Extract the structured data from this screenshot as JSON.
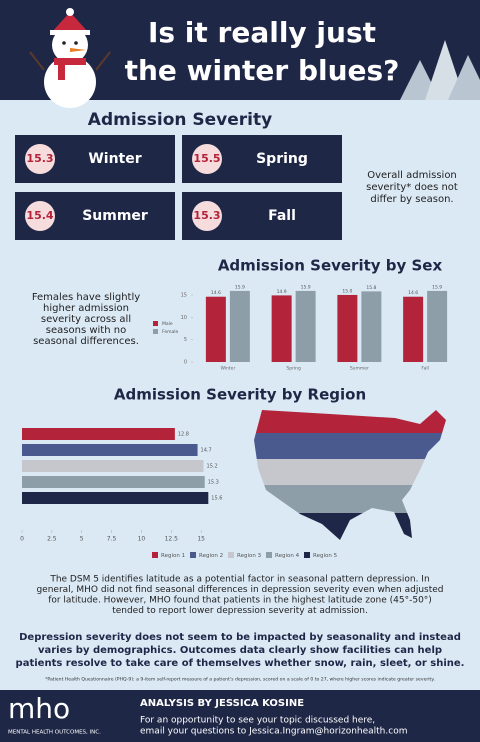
{
  "header": {
    "title_lines": [
      "Is it really just",
      "the winter blues?"
    ]
  },
  "severity": {
    "title": "Admission Severity",
    "cards": [
      {
        "value": "15.3",
        "label": "Winter"
      },
      {
        "value": "15.5",
        "label": "Spring"
      },
      {
        "value": "15.4",
        "label": "Summer"
      },
      {
        "value": "15.3",
        "label": "Fall"
      }
    ],
    "note_lines": [
      "Overall admission",
      "severity* does not",
      "differ by season."
    ]
  },
  "sex_note_lines": [
    "Females have slightly",
    "higher admission",
    "severity across all",
    "seasons with no",
    "seasonal differences."
  ],
  "chart_data": [
    {
      "type": "bar",
      "title": "Admission Severity by Sex",
      "categories": [
        "Winter",
        "Spring",
        "Summer",
        "Fall"
      ],
      "series": [
        {
          "name": "Male",
          "color": "#b3243b",
          "values": [
            14.6,
            14.9,
            15.0,
            14.6
          ],
          "value_labels": [
            "14.6",
            "14.9",
            "15.0",
            "14.6"
          ]
        },
        {
          "name": "Female",
          "color": "#8e9ea9",
          "values": [
            15.9,
            15.9,
            15.8,
            15.9
          ],
          "value_labels": [
            "15.9",
            "15.9",
            "15.8",
            "15.9"
          ]
        }
      ],
      "ylim": [
        0,
        17
      ],
      "yticks": [
        0,
        5,
        10,
        15
      ]
    },
    {
      "type": "hbar",
      "title": "Admission Severity by Region",
      "series": [
        {
          "name": "Region 1",
          "color": "#b3243b",
          "values": [
            12.8
          ]
        },
        {
          "name": "Region 2",
          "color": "#4a5a8e",
          "values": [
            14.7
          ]
        },
        {
          "name": "Region 3",
          "color": "#c6c7cc",
          "values": [
            15.2
          ]
        },
        {
          "name": "Region 4",
          "color": "#8e9ea9",
          "values": [
            15.3
          ]
        },
        {
          "name": "Region 5",
          "color": "#1e2747",
          "values": [
            15.6
          ]
        }
      ],
      "xlim": [
        0,
        17.5
      ],
      "xticks": [
        0,
        2.5,
        5,
        7.5,
        10,
        12.5,
        15
      ]
    }
  ],
  "latitude_lines": [
    "The DSM 5 identifies latitude as a potential factor in seasonal pattern depression. In",
    "general, MHO did not find seasonal differences in depression severity even when adjusted",
    "for latitude. However, MHO found that patients in the highest latitude zone (45°-50°)",
    "tended to report lower depression severity at admission."
  ],
  "conclusion_lines": [
    "Depression severity does not seem to be impacted by seasonality and instead",
    "varies by demographics. Outcomes data clearly show facilities can help",
    "patients resolve to take care of themselves whether snow, rain, sleet, or shine."
  ],
  "footnote": "*Patient Health Questionnaire (PHQ-9): a 9-item self-report measure of a patient's depression, scored on a scale of 0 to 27, where higher scores indicate greater severity.",
  "footer": {
    "logo": "mho",
    "company": "MENTAL HEALTH OUTCOMES, INC.",
    "byline": "ANALYSIS BY JESSICA KOSINE",
    "contact_lines": [
      "For an opportunity to see your topic discussed here,",
      "email your questions to Jessica.Ingram@horizonhealth.com"
    ]
  }
}
